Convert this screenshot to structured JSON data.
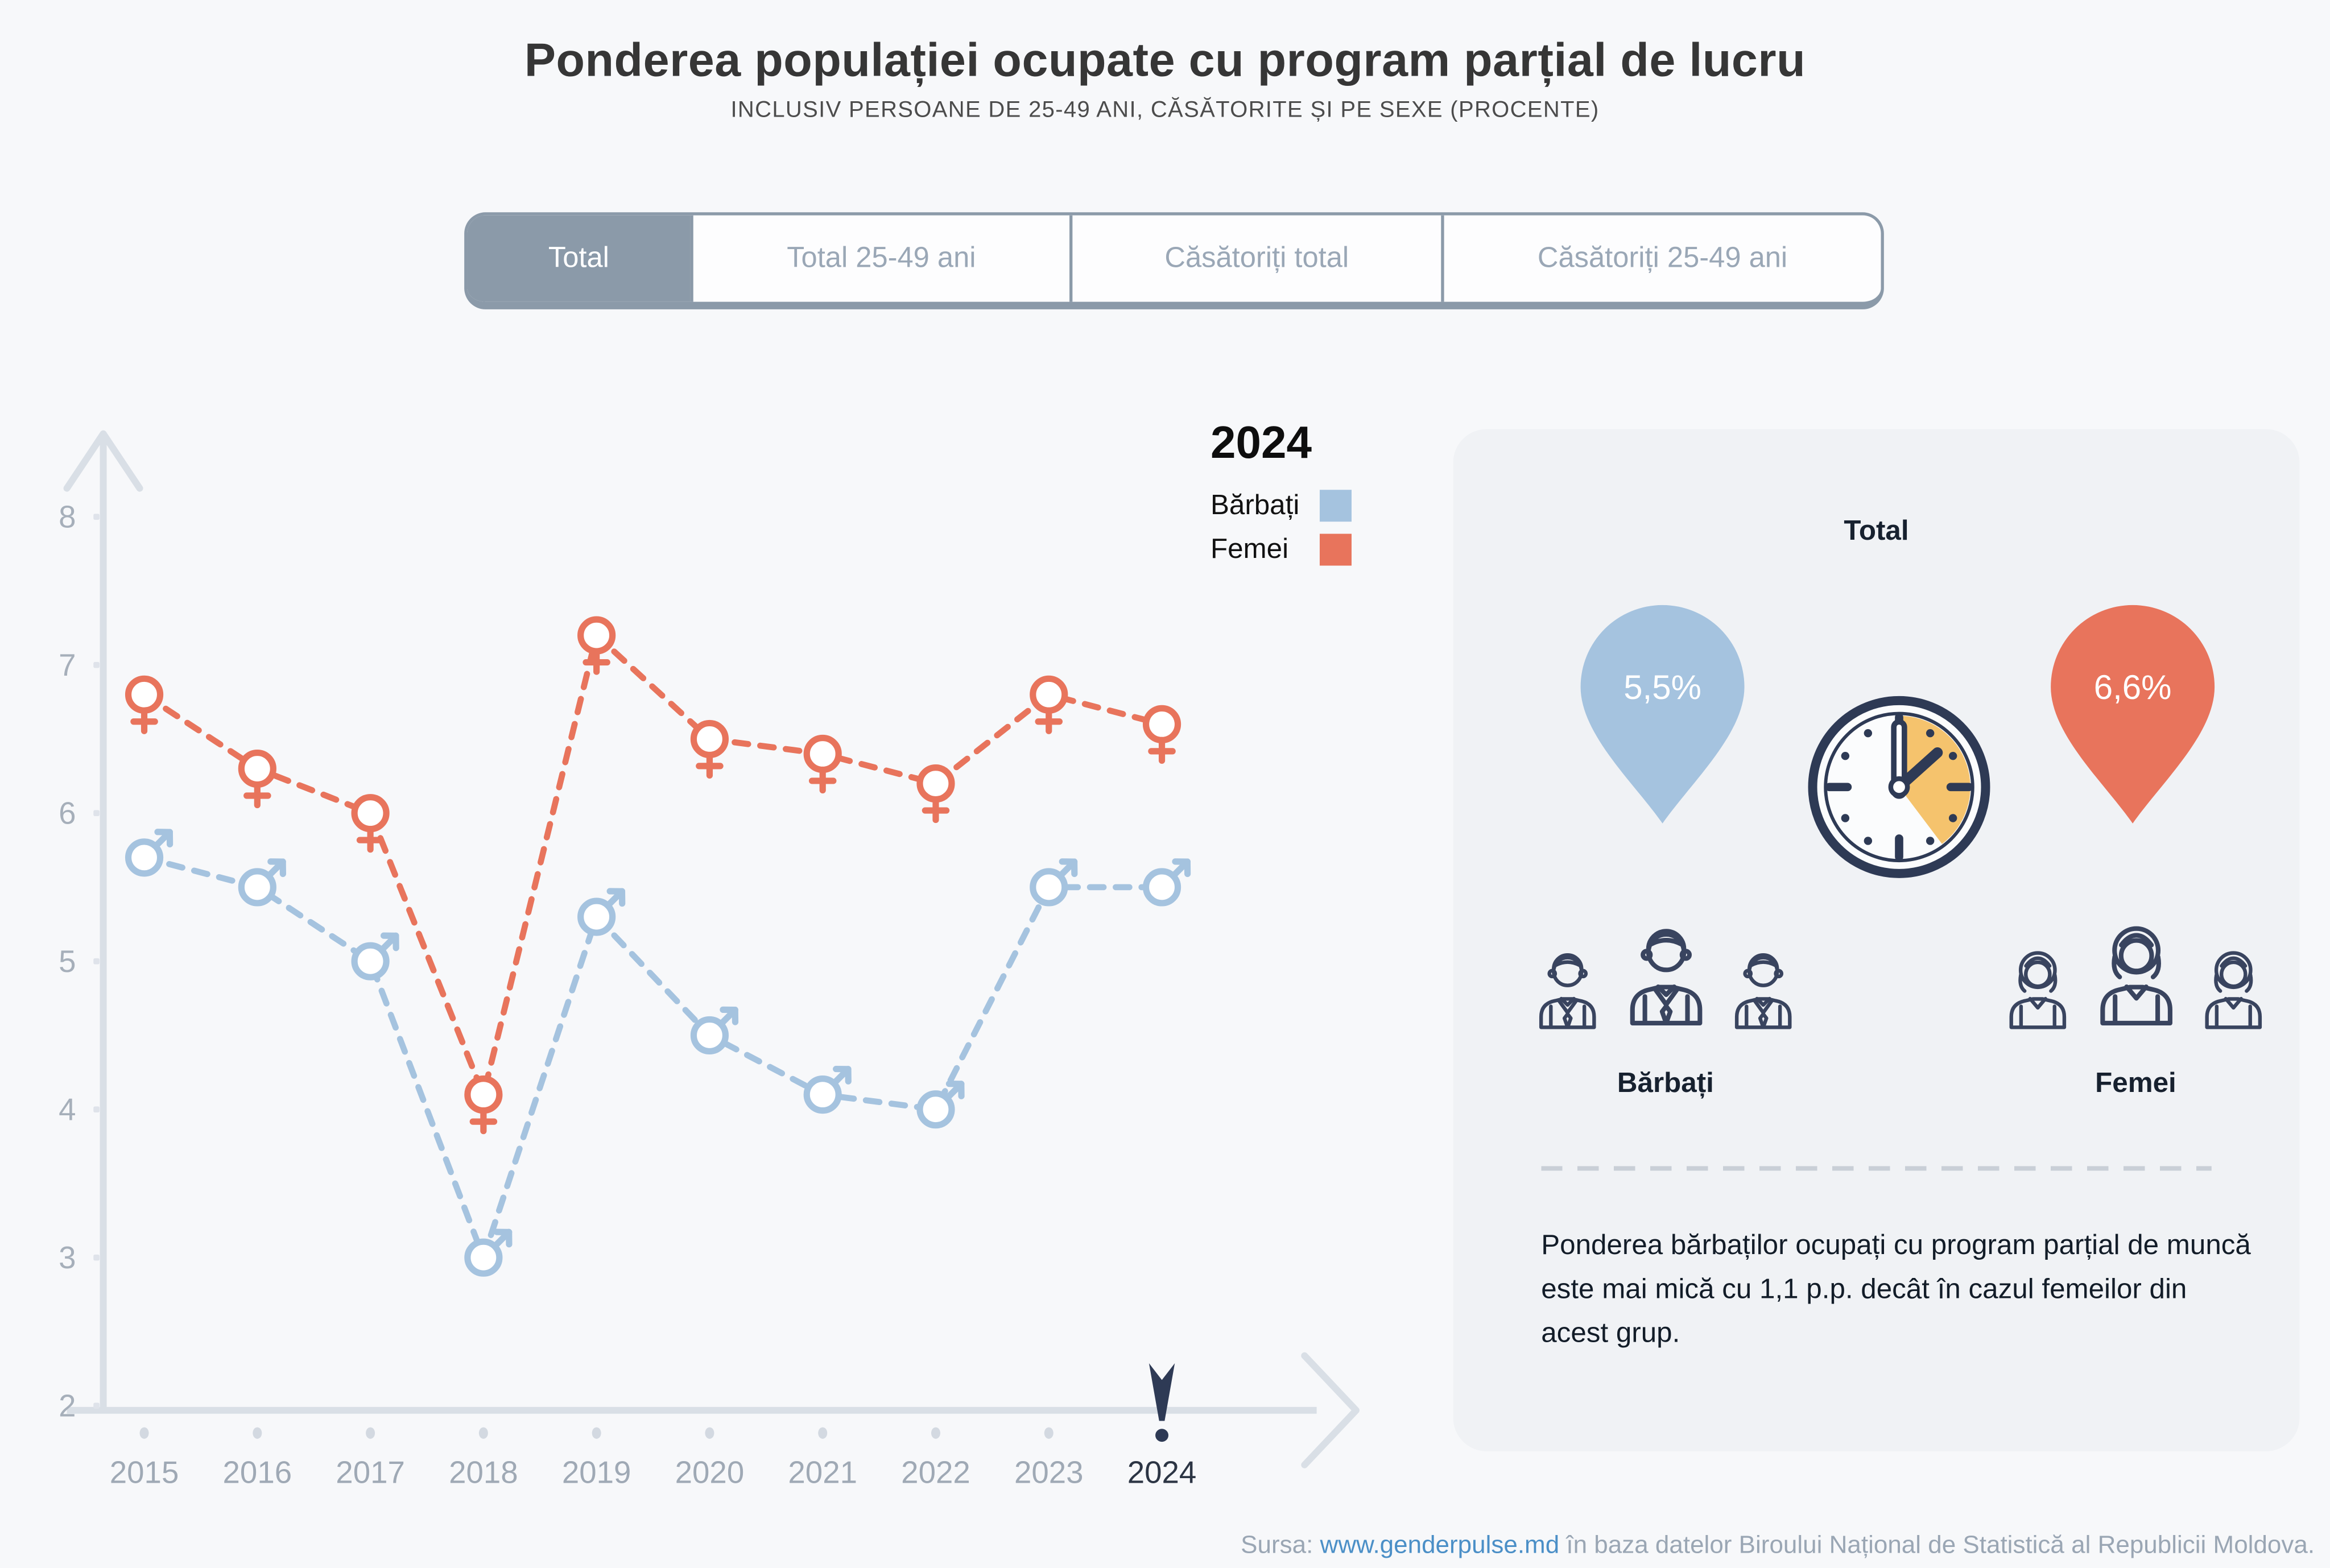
{
  "page": {
    "title": "Ponderea populației ocupate cu program parțial de lucru",
    "subtitle": "INCLUSIV PERSOANE DE 25-49 ANI, CĂSĂTORITE ȘI PE SEXE (PROCENTE)",
    "background": "#f7f8fa"
  },
  "tabs": [
    {
      "label": "Total",
      "active": true
    },
    {
      "label": "Total 25-49 ani",
      "active": false
    },
    {
      "label": "Căsătoriți total",
      "active": false
    },
    {
      "label": "Căsătoriți 25-49 ani",
      "active": false
    }
  ],
  "chart_data": {
    "type": "line",
    "categories": [
      "2015",
      "2016",
      "2017",
      "2018",
      "2019",
      "2020",
      "2021",
      "2022",
      "2023",
      "2024"
    ],
    "series": [
      {
        "name": "Bărbați",
        "color": "#a5c3df",
        "marker": "male-sign",
        "values": [
          5.7,
          5.5,
          5.0,
          3.0,
          5.3,
          4.5,
          4.1,
          4.0,
          5.5,
          5.5
        ]
      },
      {
        "name": "Femei",
        "color": "#e8745c",
        "marker": "female-sign",
        "values": [
          6.8,
          6.3,
          6.0,
          4.1,
          7.2,
          6.5,
          6.4,
          6.2,
          6.8,
          6.6
        ]
      }
    ],
    "title": "Ponderea populației ocupate cu program parțial de lucru",
    "xlabel": "",
    "ylabel": "",
    "ylim": [
      2,
      8
    ],
    "yticks": [
      2,
      3,
      4,
      5,
      6,
      7,
      8
    ],
    "grid": false,
    "line_style": "dashed",
    "legend_position": "top-right",
    "legend_title": "2024",
    "selected_year": "2024"
  },
  "panel": {
    "title": "Total",
    "male_value": "5,5%",
    "female_value": "6,6%",
    "male_label": "Bărbați",
    "female_label": "Femei",
    "note": "Ponderea bărbaților ocupați cu program parțial de muncă este mai mică cu 1,1 p.p. decât în cazul femeilor din acest grup."
  },
  "footer": {
    "prefix": "Sursa: ",
    "link": "www.genderpulse.md",
    "suffix": " în baza datelor Biroului Național de Statistică al Republicii Moldova."
  },
  "colors": {
    "male": "#a5c3df",
    "female": "#e8745c",
    "navy": "#2e3a55",
    "clock_accent": "#f5c36d",
    "tab_active_bg": "#8b9aa9",
    "panel_bg": "#f0f2f5",
    "axis": "#d9dfe6",
    "tick_text": "#a6afba",
    "year_text": "#9fa9b5",
    "year_text_active": "#2c3544",
    "link": "#4b8fc7",
    "footer_text": "#9aa6b4"
  },
  "icons": {
    "male_marker": "male-sign-icon",
    "female_marker": "female-sign-icon",
    "clock": "clock-icon",
    "men_group": "men-group-icon",
    "women_group": "women-group-icon",
    "year_cursor": "year-cursor-icon"
  }
}
